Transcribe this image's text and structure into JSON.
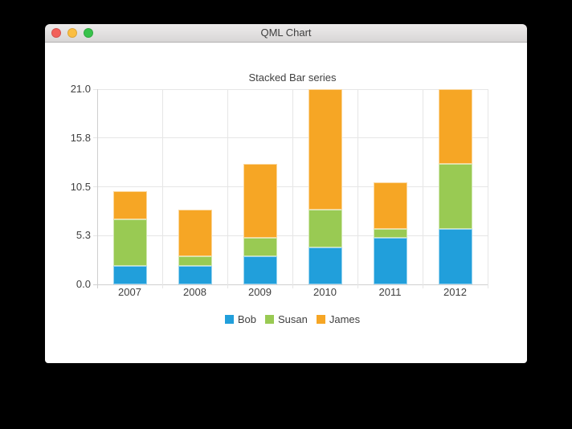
{
  "window": {
    "title": "QML Chart",
    "controls": {
      "close_color": "#f2605a",
      "minimize_color": "#fbbe41",
      "zoom_color": "#38c24b"
    }
  },
  "chart_data": {
    "type": "bar",
    "stacked": true,
    "title": "Stacked Bar series",
    "xlabel": "",
    "ylabel": "",
    "ylim": [
      0,
      21
    ],
    "grid": true,
    "legend_position": "bottom",
    "categories": [
      "2007",
      "2008",
      "2009",
      "2010",
      "2011",
      "2012"
    ],
    "series": [
      {
        "name": "Bob",
        "color": "#219fdb",
        "values": [
          2,
          2,
          3,
          4,
          5,
          6
        ]
      },
      {
        "name": "Susan",
        "color": "#99ca53",
        "values": [
          5,
          1,
          2,
          4,
          1,
          7
        ]
      },
      {
        "name": "James",
        "color": "#f6a625",
        "values": [
          3,
          5,
          8,
          13,
          5,
          8
        ]
      }
    ],
    "category_totals": [
      10,
      8,
      13,
      21,
      11,
      21
    ],
    "y_ticks": [
      {
        "label": "0.0",
        "value": 0
      },
      {
        "label": "5.3",
        "value": 5.25
      },
      {
        "label": "10.5",
        "value": 10.5
      },
      {
        "label": "15.8",
        "value": 15.75
      },
      {
        "label": "21.0",
        "value": 21
      }
    ]
  }
}
